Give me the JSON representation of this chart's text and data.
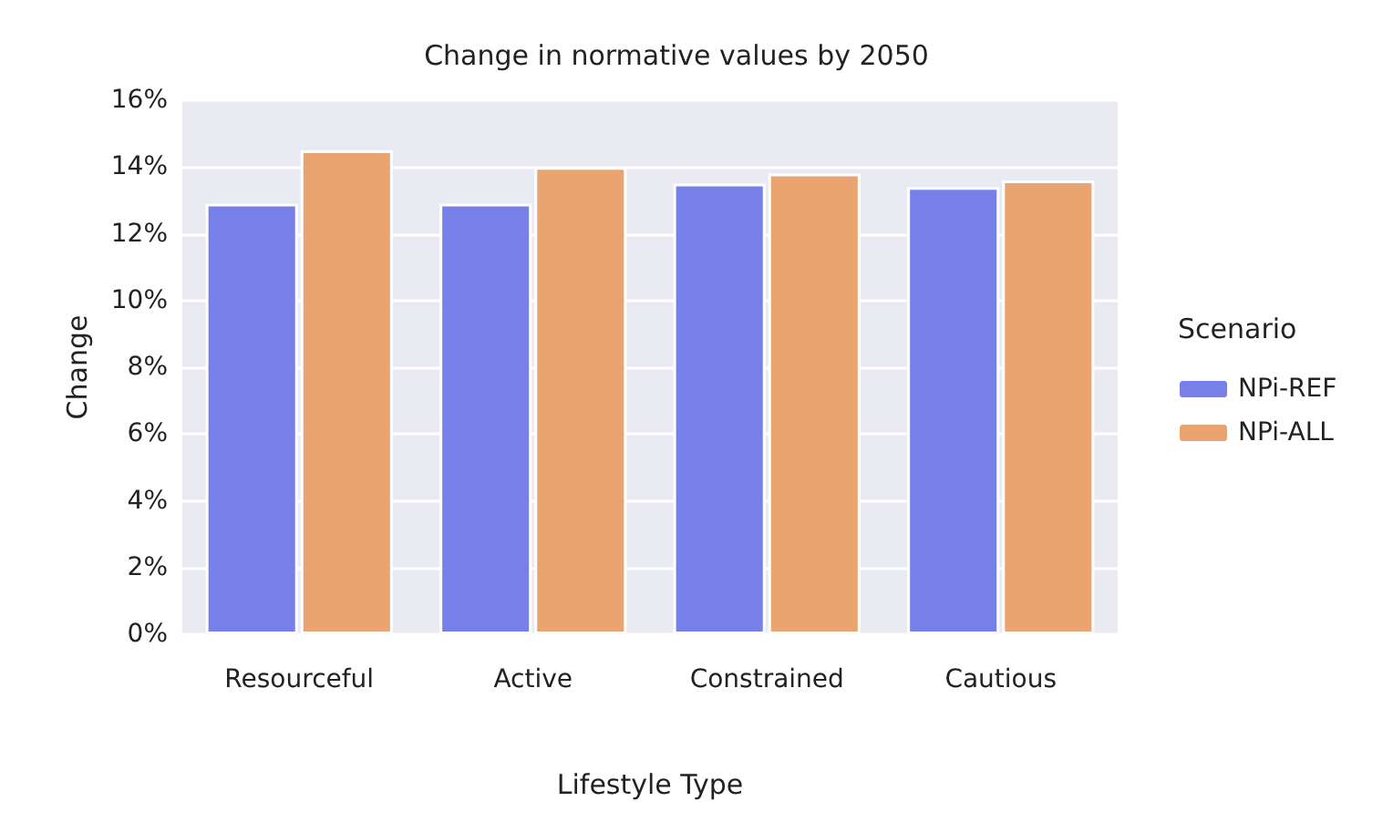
{
  "chart_data": {
    "type": "bar",
    "title": "Change in normative values by 2050",
    "xlabel": "Lifestyle Type",
    "ylabel": "Change",
    "legend_title": "Scenario",
    "categories": [
      "Resourceful",
      "Active",
      "Constrained",
      "Cautious"
    ],
    "series": [
      {
        "name": "NPi-REF",
        "color": "#7780e8",
        "values": [
          12.9,
          12.9,
          13.5,
          13.4
        ]
      },
      {
        "name": "NPi-ALL",
        "color": "#e9a46f",
        "values": [
          14.5,
          14.0,
          13.8,
          13.6
        ]
      }
    ],
    "ylim": [
      0,
      16
    ],
    "yticks": [
      {
        "value": 0,
        "label": "0%"
      },
      {
        "value": 2,
        "label": "2%"
      },
      {
        "value": 4,
        "label": "4%"
      },
      {
        "value": 6,
        "label": "6%"
      },
      {
        "value": 8,
        "label": "8%"
      },
      {
        "value": 10,
        "label": "10%"
      },
      {
        "value": 12,
        "label": "12%"
      },
      {
        "value": 14,
        "label": "14%"
      },
      {
        "value": 16,
        "label": "16%"
      }
    ],
    "grid": "y",
    "legend": "right"
  }
}
